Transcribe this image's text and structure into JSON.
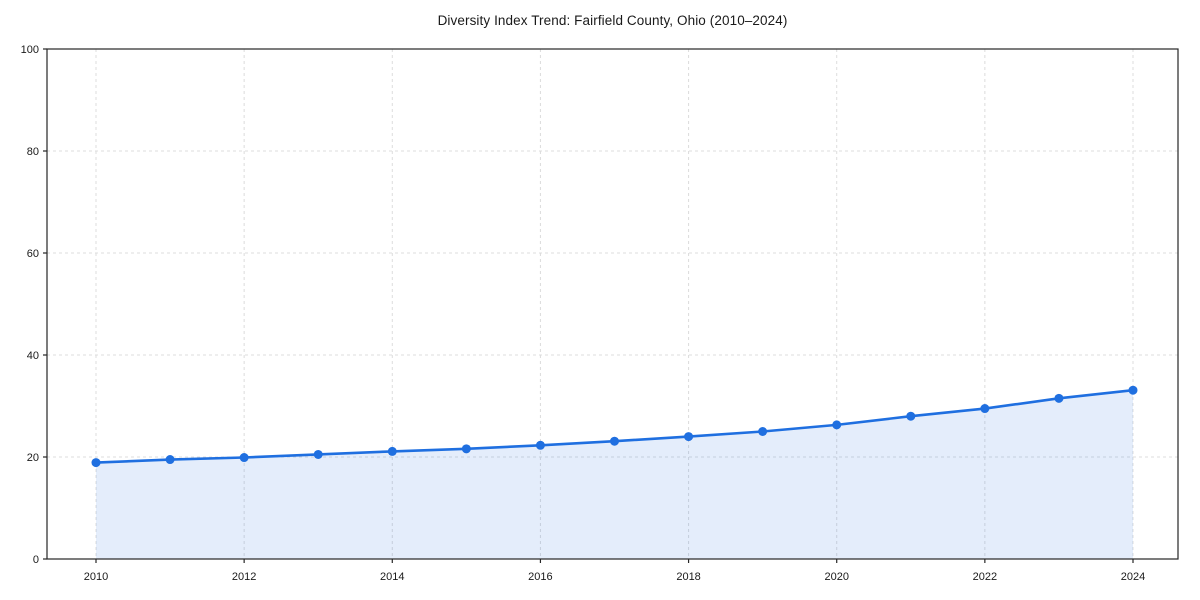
{
  "chart_data": {
    "type": "line",
    "title": "Diversity Index Trend: Fairfield County, Ohio (2010–2024)",
    "x": [
      2010,
      2011,
      2012,
      2013,
      2014,
      2015,
      2016,
      2017,
      2018,
      2019,
      2020,
      2021,
      2022,
      2023,
      2024
    ],
    "series": [
      {
        "name": "Diversity Index",
        "values": [
          18.9,
          19.5,
          19.9,
          20.5,
          21.1,
          21.6,
          22.3,
          23.1,
          24.0,
          25.0,
          26.3,
          28.0,
          29.5,
          31.5,
          33.1
        ]
      }
    ],
    "xlabel": "",
    "ylabel": "",
    "xlim": [
      2010,
      2024
    ],
    "ylim": [
      0,
      100
    ],
    "yticks": [
      0,
      20,
      40,
      60,
      80,
      100
    ],
    "xticks": [
      2010,
      2012,
      2014,
      2016,
      2018,
      2020,
      2022,
      2024
    ],
    "grid": true,
    "legend_position": "none",
    "colors": {
      "line": "#1f6fe0",
      "marker": "#1f6fe0",
      "area_fill": "rgba(31, 111, 224, 0.12)",
      "gridline": "#dcdcdc",
      "spine": "#262626",
      "tick_text": "#1a1a1a",
      "background": "#ffffff"
    }
  }
}
